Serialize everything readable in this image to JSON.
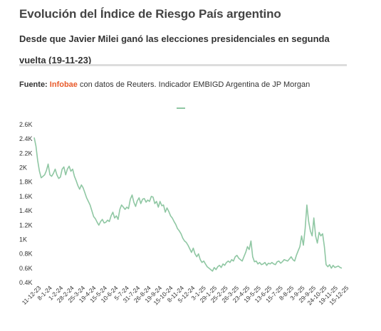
{
  "header": {
    "title": "Evolución del Índice de Riesgo País argentino",
    "subtitle": "Desde que Javier Milei ganó las elecciones presidenciales en segunda vuelta (19-11-23)"
  },
  "source": {
    "label": "Fuente:",
    "brand": "Infobae",
    "text": "con datos de Reuters. Indicador EMBIGD Argentina de JP Morgan"
  },
  "colors": {
    "line": "#8fc7a3",
    "brand": "#e85a2a"
  },
  "chart_data": {
    "type": "line",
    "title": "Evolución del Índice de Riesgo País argentino",
    "xlabel": "",
    "ylabel": "",
    "ylim": [
      400,
      2600
    ],
    "yticks": [
      "0.4K",
      "0.6K",
      "0.8K",
      "1K",
      "1.2K",
      "1.4K",
      "1.6K",
      "1.8K",
      "2K",
      "2.2K",
      "2.4K",
      "2.6K"
    ],
    "ytick_values": [
      400,
      600,
      800,
      1000,
      1200,
      1400,
      1600,
      1800,
      2000,
      2200,
      2400,
      2600
    ],
    "xticks": [
      "11-12-23",
      "8-1-24",
      "1-2-24",
      "28-2-24",
      "25-3-24",
      "19-4-24",
      "15-5-24",
      "10-6-24",
      "5-7-24",
      "31-7-24",
      "26-8-24",
      "19-9-24",
      "15-10-24",
      "8-11-24",
      "5-12-24",
      "3-1-25",
      "29-1-25",
      "25-2-25",
      "26-3-25",
      "23-4-25",
      "19-5-25",
      "13-6-25",
      "15-7-25",
      "8-8-25",
      "3-9-25",
      "29-9-25",
      "24-10-25",
      "19-11-25",
      "15-12-25"
    ],
    "grid": false,
    "legend": "top-center",
    "series": [
      {
        "name": "",
        "values": [
          2420,
          2300,
          2100,
          1950,
          1860,
          1880,
          1900,
          1960,
          2050,
          1900,
          1880,
          1920,
          1980,
          1900,
          1850,
          1870,
          1980,
          2010,
          1900,
          1980,
          2020,
          1950,
          1980,
          1880,
          1820,
          1750,
          1700,
          1760,
          1720,
          1650,
          1580,
          1530,
          1480,
          1400,
          1320,
          1290,
          1240,
          1200,
          1250,
          1280,
          1230,
          1240,
          1270,
          1250,
          1330,
          1380,
          1300,
          1330,
          1280,
          1420,
          1480,
          1450,
          1420,
          1450,
          1430,
          1560,
          1620,
          1520,
          1460,
          1540,
          1580,
          1500,
          1560,
          1570,
          1520,
          1550,
          1530,
          1600,
          1590,
          1500,
          1530,
          1450,
          1530,
          1470,
          1480,
          1380,
          1440,
          1390,
          1330,
          1300,
          1250,
          1210,
          1150,
          1120,
          1080,
          1020,
          980,
          960,
          920,
          870,
          820,
          880,
          800,
          760,
          800,
          720,
          680,
          700,
          660,
          620,
          600,
          580,
          560,
          610,
          580,
          620,
          640,
          610,
          660,
          640,
          680,
          700,
          680,
          720,
          700,
          760,
          780,
          740,
          720,
          700,
          760,
          820,
          900,
          860,
          980,
          760,
          690,
          700,
          660,
          680,
          650,
          660,
          680,
          640,
          670,
          660,
          680,
          660,
          650,
          690,
          700,
          670,
          690,
          720,
          710,
          700,
          730,
          760,
          720,
          700,
          780,
          840,
          900,
          1050,
          920,
          1150,
          1480,
          1250,
          1120,
          1050,
          1300,
          1050,
          950,
          1100,
          1050,
          1080,
          900,
          650,
          620,
          650,
          600,
          640,
          610,
          620,
          630,
          610,
          600
        ]
      }
    ]
  }
}
